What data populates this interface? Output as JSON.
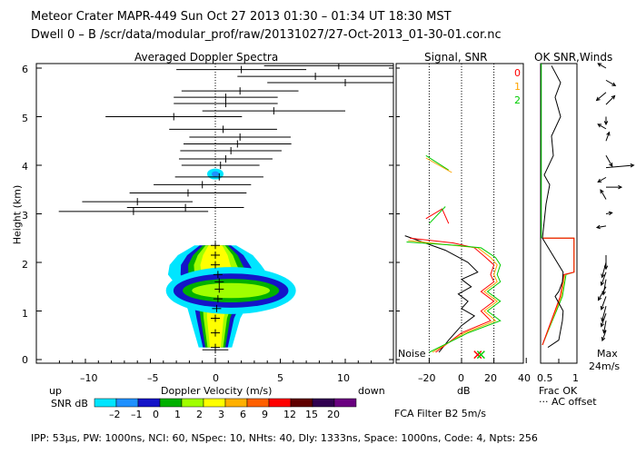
{
  "header": {
    "title": "Meteor Crater   MAPR-449   Sun Oct 27 2013 01:30 – 01:34 UT 18:30 MST",
    "dwell": "Dwell  0 –  B   /scr/data/modular_prof/raw/20131027/27-Oct-2013_01-30-01.cor.nc"
  },
  "footer": {
    "params": "IPP:  53µs,  PW: 1000ns,  NCI:  60,  NSpec: 10, NHts: 40,  Dly: 1333ns,  Space: 1000ns,  Code: 4,  Npts: 256",
    "fca": "FCA Filter B2   5m/s"
  },
  "snr_colorbar": {
    "up_label": "up",
    "label": "SNR dB",
    "down_label": "down",
    "ticks": [
      "–2",
      "–1",
      "0",
      "1",
      "2",
      "3",
      "6",
      "9",
      "12",
      "15",
      "20"
    ],
    "colors": [
      "#00e5ff",
      "#1e90ff",
      "#1414c8",
      "#00b000",
      "#a0ff00",
      "#ffff00",
      "#ffb000",
      "#ff6000",
      "#ff0000",
      "#600000",
      "#300050",
      "#6a0080"
    ]
  },
  "chart_data": [
    {
      "type": "spectra",
      "title": "Averaged Doppler Spectra",
      "xlabel": "Doppler Velocity (m/s)",
      "ylabel": "Height (km)",
      "xlim": [
        -13,
        13
      ],
      "ylim": [
        0,
        6.1
      ],
      "x_ticks": [
        "–10",
        "–5",
        "0",
        "5",
        "10"
      ],
      "x_tick_values": [
        -10,
        -5,
        0,
        5,
        10
      ],
      "y_ticks": [
        "0",
        "1",
        "2",
        "3",
        "4",
        "5",
        "6"
      ],
      "y_tick_values": [
        0,
        1,
        2,
        3,
        4,
        5,
        6
      ],
      "velocity_estimates": [
        {
          "h": 0.2,
          "v": 0.0,
          "w": 2.0
        },
        {
          "h": 3.05,
          "v": -6.3,
          "w": 11.5
        },
        {
          "h": 3.13,
          "v": -2.3,
          "w": 9.0
        },
        {
          "h": 3.25,
          "v": -6.0,
          "w": 8.5
        },
        {
          "h": 3.43,
          "v": -2.1,
          "w": 9.0
        },
        {
          "h": 3.6,
          "v": -1.0,
          "w": 7.5
        },
        {
          "h": 3.76,
          "v": 0.3,
          "w": 6.8
        },
        {
          "h": 4.0,
          "v": 0.4,
          "w": 6.0
        },
        {
          "h": 4.13,
          "v": 0.8,
          "w": 7.2
        },
        {
          "h": 4.3,
          "v": 1.2,
          "w": 7.8
        },
        {
          "h": 4.44,
          "v": 1.7,
          "w": 8.3
        },
        {
          "h": 4.58,
          "v": 1.9,
          "w": 7.8
        },
        {
          "h": 4.74,
          "v": 0.6,
          "w": 8.3
        },
        {
          "h": 5.0,
          "v": -3.2,
          "w": 10.5
        },
        {
          "h": 5.12,
          "v": 4.5,
          "w": 11.0
        },
        {
          "h": 5.27,
          "v": 0.8,
          "w": 8.0
        },
        {
          "h": 5.4,
          "v": 0.8,
          "w": 8.0
        },
        {
          "h": 5.53,
          "v": 1.9,
          "w": 9.0
        },
        {
          "h": 5.7,
          "v": 10.0,
          "w": 12.0
        },
        {
          "h": 5.83,
          "v": 7.7,
          "w": 12.0
        },
        {
          "h": 5.97,
          "v": 2.0,
          "w": 10.0
        },
        {
          "h": 6.05,
          "v": 9.5,
          "w": 11.5
        }
      ],
      "contour_centers": [
        {
          "h": 0.25,
          "v": 0.0,
          "w": 0.4
        },
        {
          "h": 0.55,
          "v": 0.0,
          "w": 0.5
        },
        {
          "h": 0.85,
          "v": 0.0,
          "w": 0.6
        },
        {
          "h": 1.05,
          "v": 0.1,
          "w": 0.7
        },
        {
          "h": 1.25,
          "v": 0.2,
          "w": 0.9
        },
        {
          "h": 1.45,
          "v": 0.3,
          "w": 1.0
        },
        {
          "h": 1.6,
          "v": 0.3,
          "w": 1.1
        },
        {
          "h": 1.75,
          "v": 0.2,
          "w": 1.2
        },
        {
          "h": 1.95,
          "v": 0.0,
          "w": 1.1
        },
        {
          "h": 2.15,
          "v": 0.0,
          "w": 0.9
        },
        {
          "h": 2.35,
          "v": 0.0,
          "w": 0.5
        }
      ]
    },
    {
      "type": "line",
      "title": "Signal, SNR",
      "xlabel": "dB",
      "xlim": [
        -35,
        40
      ],
      "ylim": [
        0,
        6.1
      ],
      "x_ticks": [
        "–20",
        "0",
        "20",
        "40"
      ],
      "x_tick_values": [
        -20,
        0,
        20,
        40
      ],
      "noise_label": "Noise",
      "series": [
        {
          "name": "signal",
          "color": "#000000",
          "points": [
            [
              -14,
              0.15
            ],
            [
              -8,
              0.4
            ],
            [
              0,
              0.7
            ],
            [
              8,
              0.9
            ],
            [
              0,
              1.05
            ],
            [
              4,
              1.2
            ],
            [
              -2,
              1.35
            ],
            [
              6,
              1.5
            ],
            [
              0,
              1.65
            ],
            [
              10,
              1.8
            ],
            [
              4,
              2.0
            ],
            [
              -10,
              2.25
            ],
            [
              -35,
              2.55
            ]
          ]
        },
        {
          "name": "snr_0",
          "color": "#ff0000",
          "points": [
            [
              -16,
              0.15
            ],
            [
              0,
              0.55
            ],
            [
              18,
              0.8
            ],
            [
              12,
              1.0
            ],
            [
              20,
              1.2
            ],
            [
              12,
              1.4
            ],
            [
              20,
              1.6
            ],
            [
              18,
              1.75
            ],
            [
              20,
              1.95
            ],
            [
              15,
              2.1
            ],
            [
              8,
              2.3
            ],
            [
              -5,
              2.4
            ],
            [
              -32,
              2.5
            ]
          ]
        },
        {
          "name": "snr_1",
          "color": "#ffa500",
          "points": [
            [
              -18,
              0.15
            ],
            [
              2,
              0.55
            ],
            [
              21,
              0.8
            ],
            [
              14,
              1.0
            ],
            [
              22,
              1.2
            ],
            [
              14,
              1.4
            ],
            [
              22,
              1.6
            ],
            [
              20,
              1.75
            ],
            [
              22,
              1.95
            ],
            [
              18,
              2.1
            ],
            [
              10,
              2.3
            ],
            [
              -5,
              2.35
            ],
            [
              -33,
              2.45
            ]
          ]
        },
        {
          "name": "snr_2",
          "color": "#00cc00",
          "points": [
            [
              -20,
              0.15
            ],
            [
              4,
              0.55
            ],
            [
              24,
              0.8
            ],
            [
              16,
              1.0
            ],
            [
              24,
              1.2
            ],
            [
              16,
              1.4
            ],
            [
              24,
              1.6
            ],
            [
              22,
              1.75
            ],
            [
              24,
              1.95
            ],
            [
              21,
              2.1
            ],
            [
              12,
              2.3
            ],
            [
              -3,
              2.35
            ],
            [
              -34,
              2.42
            ]
          ]
        }
      ],
      "x_markers": [
        {
          "db": 10,
          "color": "#ff0000"
        },
        {
          "db": 12,
          "color": "#00cc00"
        }
      ]
    },
    {
      "type": "line",
      "title": "OK SNR,Winds",
      "xlabel": "Frac OK",
      "ylim": [
        0,
        6.1
      ],
      "x_ticks": [
        "0.5",
        "1"
      ],
      "x_tick_values": [
        0.5,
        1.0
      ],
      "legend": [
        "0",
        "1",
        "2"
      ],
      "legend_colors": [
        "#ff0000",
        "#ffa500",
        "#00cc00"
      ],
      "ac_offset_label": "··· AC offset",
      "frac_ok": [
        [
          0.2,
          0.25
        ],
        [
          0.5,
          0.4
        ],
        [
          0.55,
          0.6
        ],
        [
          0.6,
          0.8
        ],
        [
          0.62,
          1.0
        ],
        [
          0.4,
          1.3
        ],
        [
          0.5,
          1.4
        ],
        [
          0.6,
          1.6
        ],
        [
          0.62,
          1.8
        ],
        [
          0.05,
          2.5
        ],
        [
          0.15,
          3.2
        ],
        [
          0.25,
          3.6
        ],
        [
          0.1,
          3.8
        ],
        [
          0.35,
          4.2
        ],
        [
          0.3,
          4.6
        ],
        [
          0.55,
          5.0
        ],
        [
          0.4,
          5.4
        ],
        [
          0.55,
          5.7
        ],
        [
          0.3,
          6.05
        ]
      ],
      "winds": {
        "max_label": "Max",
        "max_value": "24m/s",
        "vectors": [
          {
            "h": 0.6,
            "dir": 200,
            "spd": 0.35
          },
          {
            "h": 0.8,
            "dir": 190,
            "spd": 0.4
          },
          {
            "h": 0.95,
            "dir": 200,
            "spd": 0.45
          },
          {
            "h": 1.1,
            "dir": 195,
            "spd": 0.5
          },
          {
            "h": 1.3,
            "dir": 200,
            "spd": 0.45
          },
          {
            "h": 1.5,
            "dir": 210,
            "spd": 0.5
          },
          {
            "h": 1.65,
            "dir": 190,
            "spd": 0.5
          },
          {
            "h": 1.8,
            "dir": 200,
            "spd": 0.45
          },
          {
            "h": 2.0,
            "dir": 195,
            "spd": 0.5
          },
          {
            "h": 2.15,
            "dir": 180,
            "spd": 0.45
          },
          {
            "h": 2.75,
            "dir": 260,
            "spd": 0.3
          },
          {
            "h": 3.0,
            "dir": 80,
            "spd": 0.2
          },
          {
            "h": 3.3,
            "dir": 330,
            "spd": 0.35
          },
          {
            "h": 3.55,
            "dir": 90,
            "spd": 0.5
          },
          {
            "h": 3.75,
            "dir": 240,
            "spd": 0.3
          },
          {
            "h": 3.95,
            "dir": 85,
            "spd": 0.9
          },
          {
            "h": 4.2,
            "dir": 150,
            "spd": 0.4
          },
          {
            "h": 4.5,
            "dir": 20,
            "spd": 0.3
          },
          {
            "h": 4.75,
            "dir": 300,
            "spd": 0.3
          },
          {
            "h": 5.0,
            "dir": 180,
            "spd": 0.25
          },
          {
            "h": 5.25,
            "dir": 45,
            "spd": 0.4
          },
          {
            "h": 5.5,
            "dir": 230,
            "spd": 0.4
          },
          {
            "h": 5.75,
            "dir": 120,
            "spd": 0.35
          },
          {
            "h": 6.0,
            "dir": 300,
            "spd": 0.3
          }
        ]
      }
    }
  ]
}
